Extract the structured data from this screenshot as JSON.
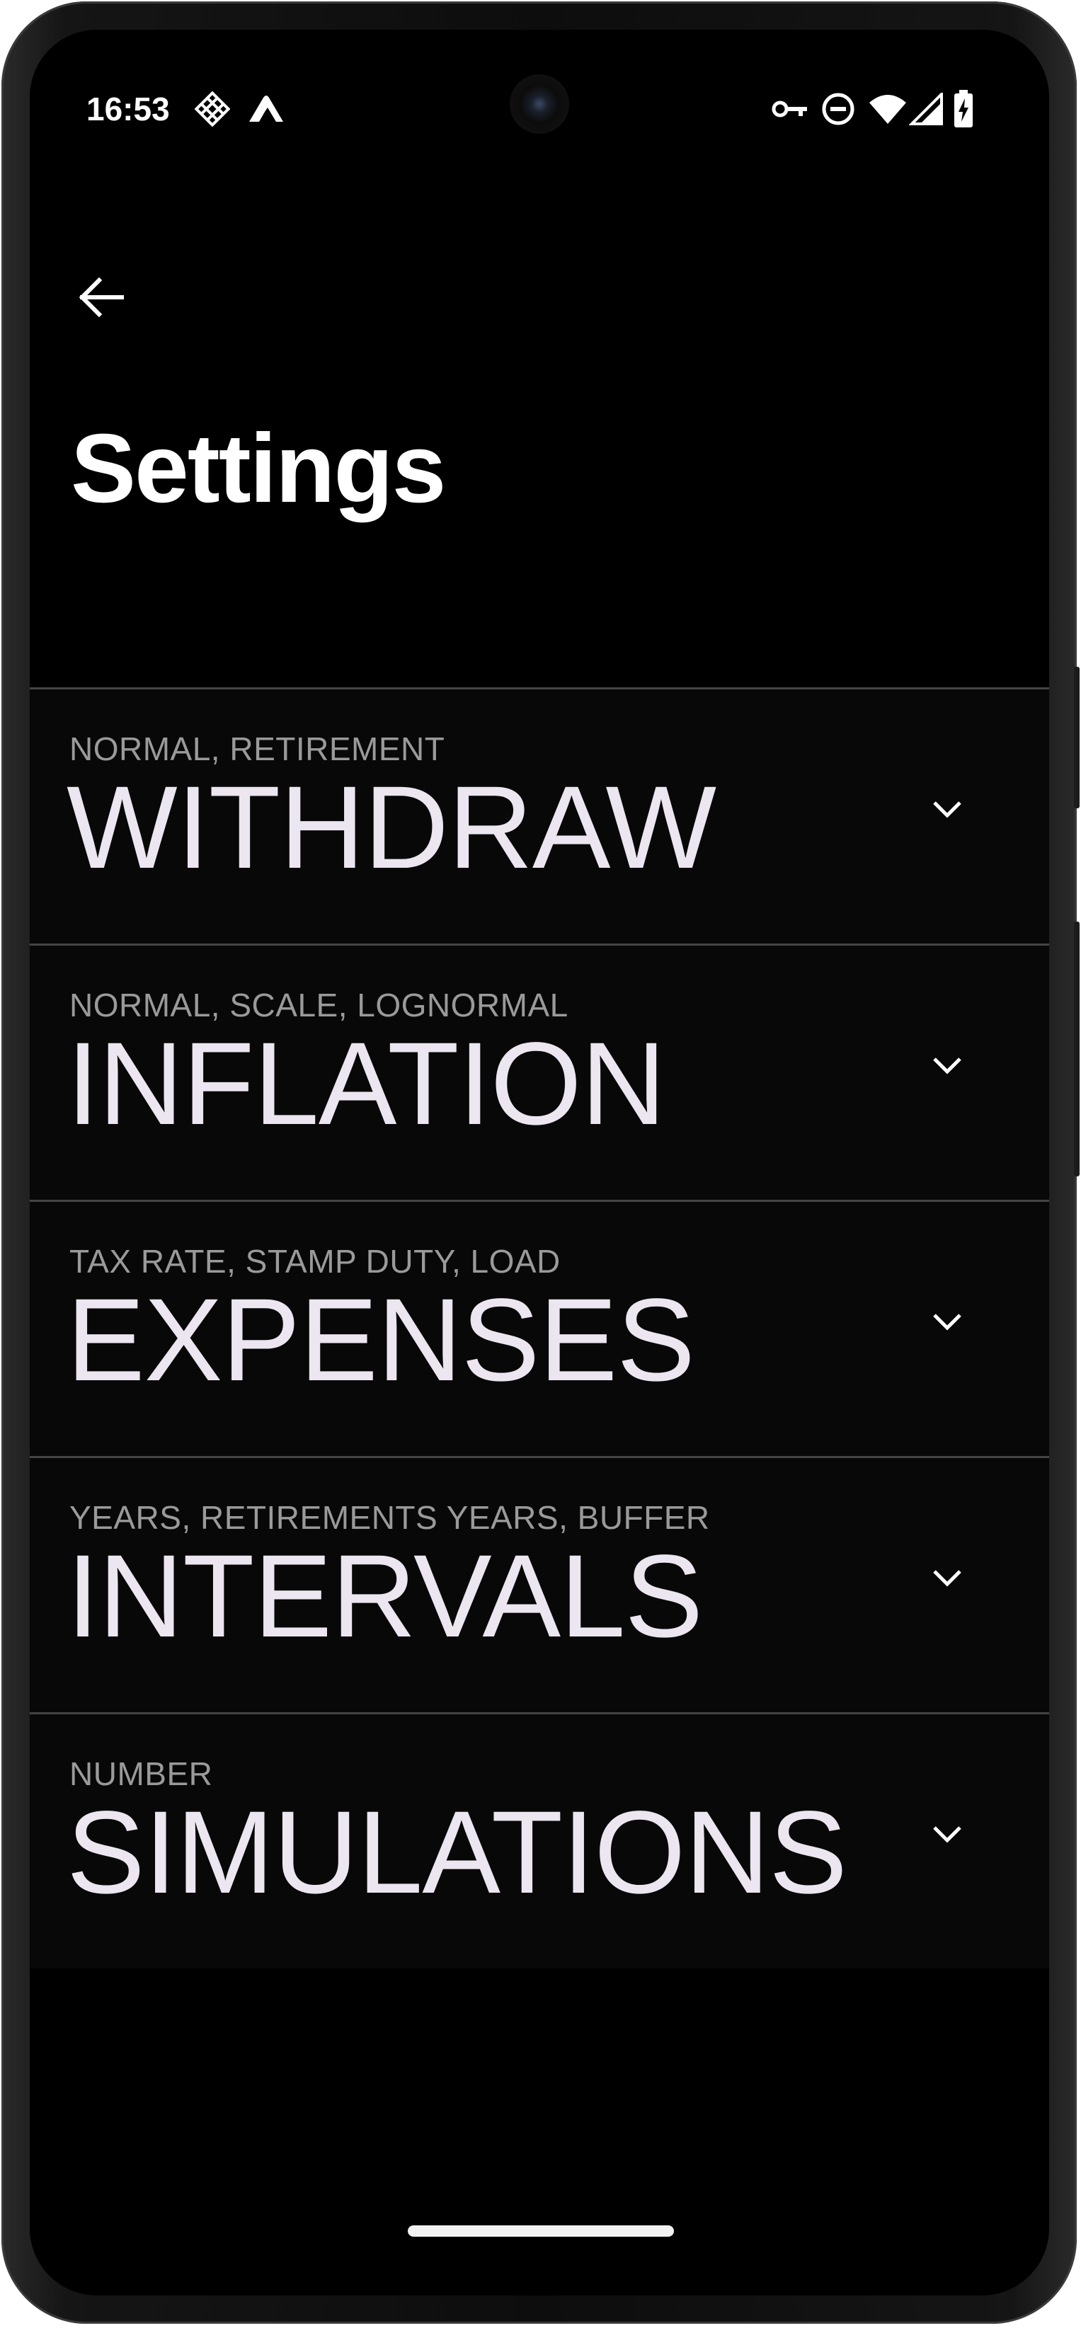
{
  "status_bar": {
    "time": "16:53",
    "icons": [
      "network-diamond-icon",
      "vpn-peak-icon",
      "vpn-key-icon",
      "do-not-disturb-icon",
      "wifi-icon",
      "cell-signal-icon",
      "battery-charging-icon"
    ]
  },
  "header": {
    "back_icon": "arrow-left-icon",
    "title": "Settings"
  },
  "settings": {
    "items": [
      {
        "subtitle": "NORMAL, RETIREMENT",
        "title": "WITHDRAW"
      },
      {
        "subtitle": "NORMAL, SCALE, LOGNORMAL",
        "title": "INFLATION"
      },
      {
        "subtitle": "TAX RATE, STAMP DUTY, LOAD",
        "title": "EXPENSES"
      },
      {
        "subtitle": "YEARS, RETIREMENTS YEARS, BUFFER",
        "title": "INTERVALS"
      },
      {
        "subtitle": "NUMBER",
        "title": "SIMULATIONS"
      }
    ],
    "expand_icon": "chevron-down-icon"
  },
  "colors": {
    "background": "#000000",
    "row_background": "#080808",
    "divider": "#444444",
    "title_text": "#ece6f0",
    "subtitle_text": "#9a9a9a"
  }
}
